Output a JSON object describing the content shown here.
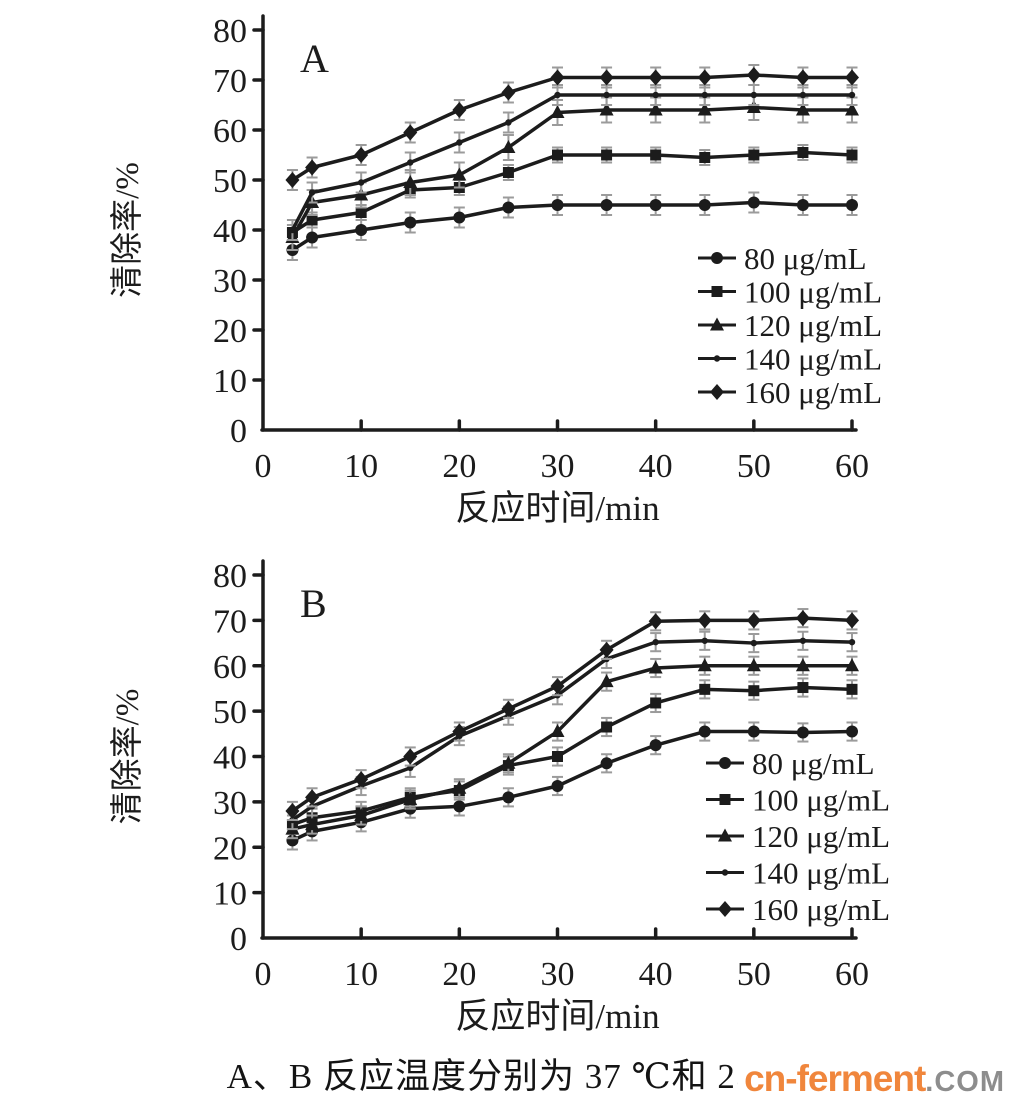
{
  "caption": "A、B 反应温度分别为 37 ℃和 25 ℃。",
  "watermark": {
    "brand": "cn-ferment",
    "tld": ".COM"
  },
  "colors": {
    "line": "#1c1c1c",
    "text": "#1c1c1c",
    "error_bar": "#9b9b9b",
    "watermark_brand": "#f0863c",
    "watermark_tld": "#8d8d8d",
    "background": "#ffffff"
  },
  "chart_data": [
    {
      "id": "A",
      "type": "line",
      "panel_label": "A",
      "xlabel": "反应时间/min",
      "ylabel": "清除率/%",
      "xlim": [
        0,
        60
      ],
      "ylim": [
        0,
        80
      ],
      "xticks": [
        0,
        10,
        20,
        30,
        40,
        50,
        60
      ],
      "yticks": [
        0,
        10,
        20,
        30,
        40,
        50,
        60,
        70,
        80
      ],
      "grid": false,
      "legend_position": "right-middle",
      "x": [
        3,
        5,
        10,
        15,
        20,
        25,
        30,
        35,
        40,
        45,
        50,
        55,
        60
      ],
      "series": [
        {
          "name": "80 μg/mL",
          "marker": "circle",
          "error": 2,
          "values": [
            36,
            38.5,
            40,
            41.5,
            42.5,
            44.5,
            45,
            45,
            45,
            45,
            45.5,
            45,
            45
          ]
        },
        {
          "name": "100 μg/mL",
          "marker": "square",
          "error": 1.5,
          "values": [
            39.5,
            42,
            43.5,
            48,
            48.5,
            51.5,
            55,
            55,
            55,
            54.5,
            55,
            55.5,
            55
          ]
        },
        {
          "name": "120 μg/mL",
          "marker": "triangle",
          "error": 2.5,
          "values": [
            38.5,
            45.5,
            47,
            49.5,
            51,
            56.5,
            63.5,
            64,
            64,
            64,
            64.5,
            64,
            64
          ]
        },
        {
          "name": "140 μg/mL",
          "marker": "dot",
          "error": 2,
          "values": [
            40,
            47.5,
            49.5,
            53.5,
            57.5,
            61.5,
            67,
            67,
            67,
            67,
            67,
            67,
            67
          ]
        },
        {
          "name": "160 μg/mL",
          "marker": "diamond",
          "error": 2,
          "values": [
            50,
            52.5,
            55,
            59.5,
            64,
            67.5,
            70.5,
            70.5,
            70.5,
            70.5,
            71,
            70.5,
            70.5
          ]
        }
      ]
    },
    {
      "id": "B",
      "type": "line",
      "panel_label": "B",
      "xlabel": "反应时间/min",
      "ylabel": "清除率/%",
      "xlim": [
        0,
        60
      ],
      "ylim": [
        0,
        80
      ],
      "xticks": [
        0,
        10,
        20,
        30,
        40,
        50,
        60
      ],
      "yticks": [
        0,
        10,
        20,
        30,
        40,
        50,
        60,
        70,
        80
      ],
      "grid": false,
      "legend_position": "right-bottom",
      "x": [
        3,
        5,
        10,
        15,
        20,
        25,
        30,
        35,
        40,
        45,
        50,
        55,
        60
      ],
      "series": [
        {
          "name": "80 μg/mL",
          "marker": "circle",
          "error": 2,
          "values": [
            21.5,
            23.5,
            25.5,
            28.5,
            29,
            31,
            33.5,
            38.5,
            42.5,
            45.5,
            45.5,
            45.3,
            45.5
          ]
        },
        {
          "name": "100 μg/mL",
          "marker": "square",
          "error": 2,
          "values": [
            25,
            26.5,
            28,
            31,
            32.5,
            38,
            40,
            46.5,
            51.8,
            54.8,
            54.5,
            55.2,
            54.8
          ]
        },
        {
          "name": "120 μg/mL",
          "marker": "triangle",
          "error": 2,
          "values": [
            24,
            25,
            27,
            30.5,
            33,
            38.5,
            45.5,
            56.5,
            59.5,
            60,
            60,
            60,
            60
          ]
        },
        {
          "name": "140 μg/mL",
          "marker": "dot",
          "error": 2,
          "values": [
            26,
            29,
            33.5,
            37.5,
            44.5,
            49,
            53.5,
            61.5,
            65.2,
            65.5,
            65,
            65.5,
            65.2
          ]
        },
        {
          "name": "160 μg/mL",
          "marker": "diamond",
          "error": 2,
          "values": [
            28,
            31,
            35,
            40,
            45.5,
            50.5,
            55.5,
            63.5,
            69.8,
            70,
            70,
            70.5,
            70
          ]
        }
      ]
    }
  ]
}
